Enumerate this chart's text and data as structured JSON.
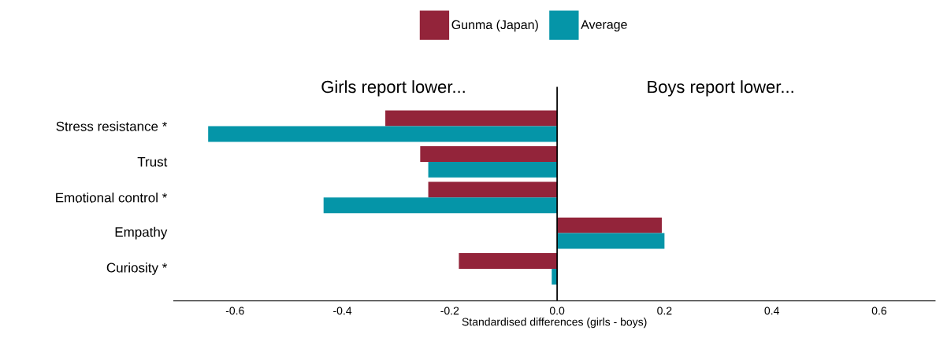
{
  "chart_data": {
    "type": "bar",
    "orientation": "horizontal",
    "xlabel": "Standardised differences (girls - boys)",
    "categories": [
      "Stress resistance *",
      "Trust",
      "Emotional control *",
      "Empathy",
      "Curiosity *"
    ],
    "series": [
      {
        "name": "Gunma (Japan)",
        "color": "#93243a",
        "values": [
          -0.32,
          -0.255,
          -0.24,
          0.195,
          -0.183
        ]
      },
      {
        "name": "Average",
        "color": "#0595a8",
        "values": [
          -0.65,
          -0.24,
          -0.435,
          0.2,
          -0.01
        ]
      }
    ],
    "xlim": [
      -0.715,
      0.705
    ],
    "xticks": [
      {
        "value": -0.6,
        "label": "-0.6"
      },
      {
        "value": -0.4,
        "label": "-0.4"
      },
      {
        "value": -0.2,
        "label": "-0.2"
      },
      {
        "value": 0,
        "label": "0.0"
      },
      {
        "value": 0.2,
        "label": "0.2"
      },
      {
        "value": 0.4,
        "label": "0.4"
      },
      {
        "value": 0.6,
        "label": "0.6"
      }
    ],
    "ref_lines": [
      {
        "axis": "x",
        "value": 0
      }
    ],
    "annotations": [
      "Girls report lower...",
      "Boys report lower..."
    ],
    "grid": false,
    "legend": "top"
  }
}
